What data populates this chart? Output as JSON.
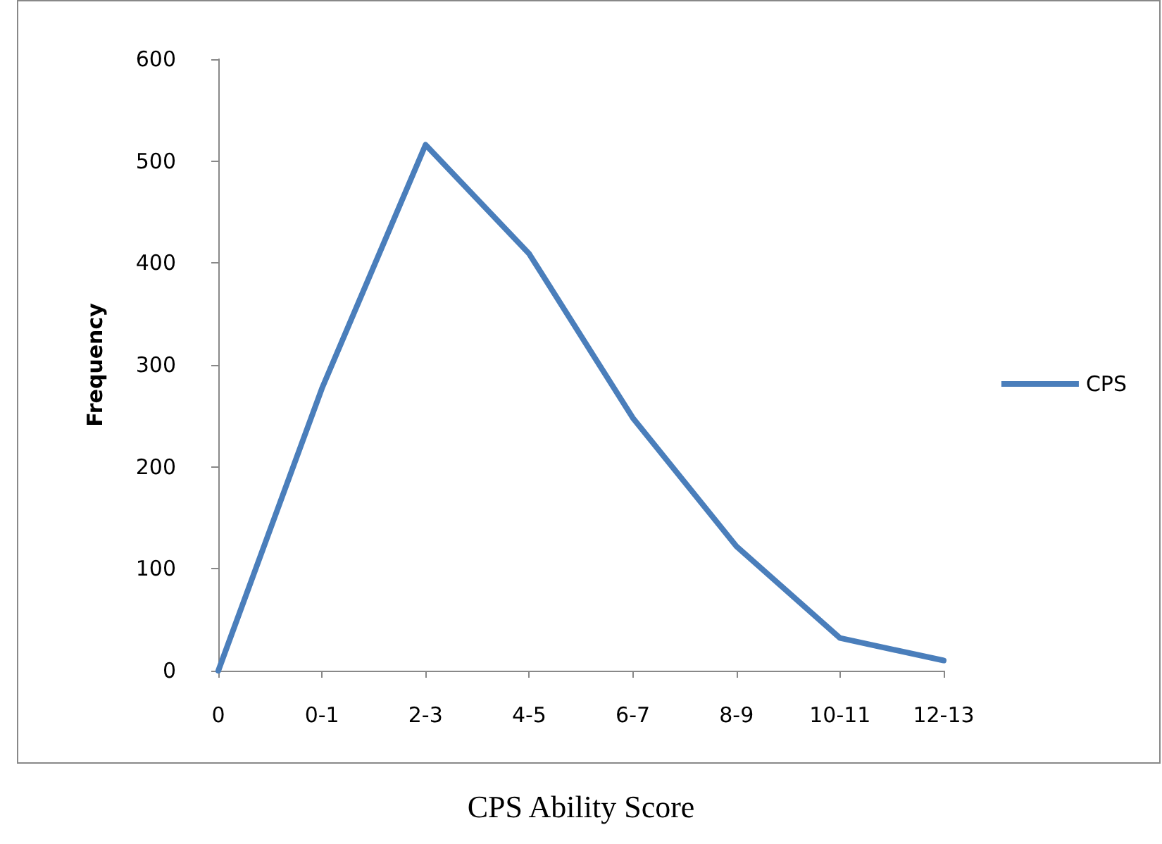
{
  "chart_data": {
    "type": "line",
    "xlabel": "CPS Ability Score",
    "ylabel": "Frequency",
    "categories": [
      "0",
      "0-1",
      "2-3",
      "4-5",
      "6-7",
      "8-9",
      "10-11",
      "12-13"
    ],
    "series": [
      {
        "name": "CPS",
        "color": "#4a7ebb",
        "values": [
          0,
          277,
          516,
          409,
          248,
          122,
          32,
          10
        ]
      }
    ],
    "ylim": [
      0,
      600
    ],
    "yticks": [
      0,
      100,
      200,
      300,
      400,
      500,
      600
    ],
    "grid": false,
    "legend": "right",
    "marker": "none",
    "line_style": "solid"
  }
}
